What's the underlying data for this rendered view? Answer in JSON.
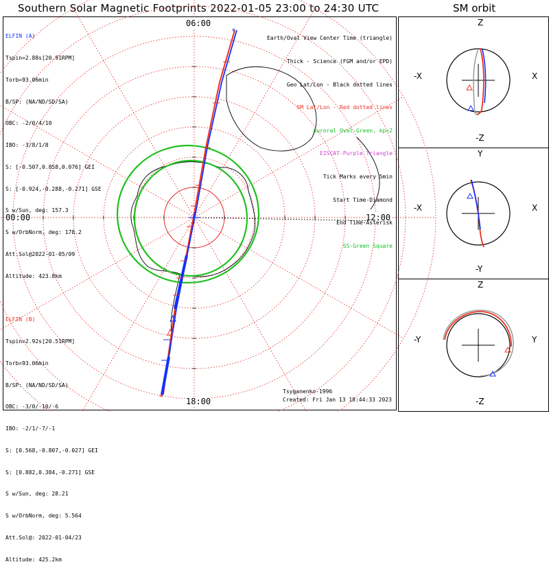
{
  "title": "Southern Solar Magnetic Footprints 2022-01-05 23:00 to 24:30 UTC",
  "orbit_title": "SM orbit",
  "colors": {
    "elfin_a": "#1030ff",
    "elfin_b": "#ee3020",
    "oval": "#20c020",
    "grid": "#e83030",
    "geo": "#000000"
  },
  "mlt_labels": {
    "top": "06:00",
    "left": "00:00",
    "right": "12:00",
    "bottom": "18:00"
  },
  "elfin_a": {
    "name": "ELFIN (A)",
    "lines": [
      "Tspin=2.88s[20.91RPM]",
      "Torb=93.06min",
      "B/SP: (NA/ND/SD/SA)",
      "OBC: -2/0/4/10",
      "IBO: -3/8/1/8",
      "S: [-0.507,0.858,0.076] GEI",
      "S: [-0.924,-0.288,-0.271] GSE",
      "S w/Sun, deg: 157.3",
      "S w/OrbNorm, deg: 178.2",
      "Att.Sol@2022-01-05/09",
      "Altitude: 423.8km"
    ]
  },
  "elfin_b": {
    "name": "ELFIN (B)",
    "lines": [
      "Tspin=2.92s[20.51RPM]",
      "Torb=93.06min",
      "B/SP: (NA/ND/SD/SA)",
      "OBC: -3/0/-10/-6",
      "IBO: -2/1/-7/-1",
      "S: [0.568,-0.807,-0.027] GEI",
      "S: [0.882,0.384,-0.271] GSE",
      "S w/Sun, deg: 28.21",
      "S w/OrbNorm, deg: 5.564",
      "Att.Sol@: 2022-01-04/23",
      "Altitude: 425.2km"
    ]
  },
  "legend": [
    {
      "text": "Earth/Oval View Center Time (triangle)",
      "color": "#000000"
    },
    {
      "text": "Thick - Science (FGM and/or EPD)",
      "color": "#000000"
    },
    {
      "text": "Geo Lat/Lon - Black dotted lines",
      "color": "#000000"
    },
    {
      "text": "SM Lat/Lon - Red dotted lines",
      "color": "#ee3020"
    },
    {
      "text": "Auroral Oval-Green, kp=2",
      "color": "#10c020"
    },
    {
      "text": "EISCAT-Purple Triangle",
      "color": "#cc44cc"
    },
    {
      "text": "Tick Marks every 5min",
      "color": "#000000"
    },
    {
      "text": "Start Time-Diamond",
      "color": "#000000"
    },
    {
      "text": "End Time-Asterisk",
      "color": "#000000"
    },
    {
      "text": "SS-Green Square",
      "color": "#10c020"
    }
  ],
  "footer": {
    "author": "Tsyganenko-1996",
    "created": "Created: Fri Jan 13 18:44:33 2023"
  },
  "orbit_panels": [
    {
      "top": "Z",
      "bottom": "-Z",
      "left": "-X",
      "right": "X"
    },
    {
      "top": "Y",
      "bottom": "-Y",
      "left": "-X",
      "right": "X"
    },
    {
      "top": "Z",
      "bottom": "-Z",
      "left": "-Y",
      "right": "Y"
    }
  ],
  "chart_data": {
    "type": "scatter",
    "title": "Southern Solar Magnetic Footprints 2022-01-05 23:00 to 24:30 UTC",
    "projection": "polar (SM coordinates, MLT around circumference)",
    "mlt_ticks": [
      "00:00",
      "06:00",
      "12:00",
      "18:00"
    ],
    "series": [
      {
        "name": "ELFIN (A)",
        "color": "#1030ff",
        "footprint_mlt_start": "06:00",
        "footprint_mlt_end": "18:00"
      },
      {
        "name": "ELFIN (B)",
        "color": "#ee3020",
        "footprint_mlt_start": "06:00",
        "footprint_mlt_end": "18:00"
      }
    ],
    "auroral_oval_kp": 2
  }
}
